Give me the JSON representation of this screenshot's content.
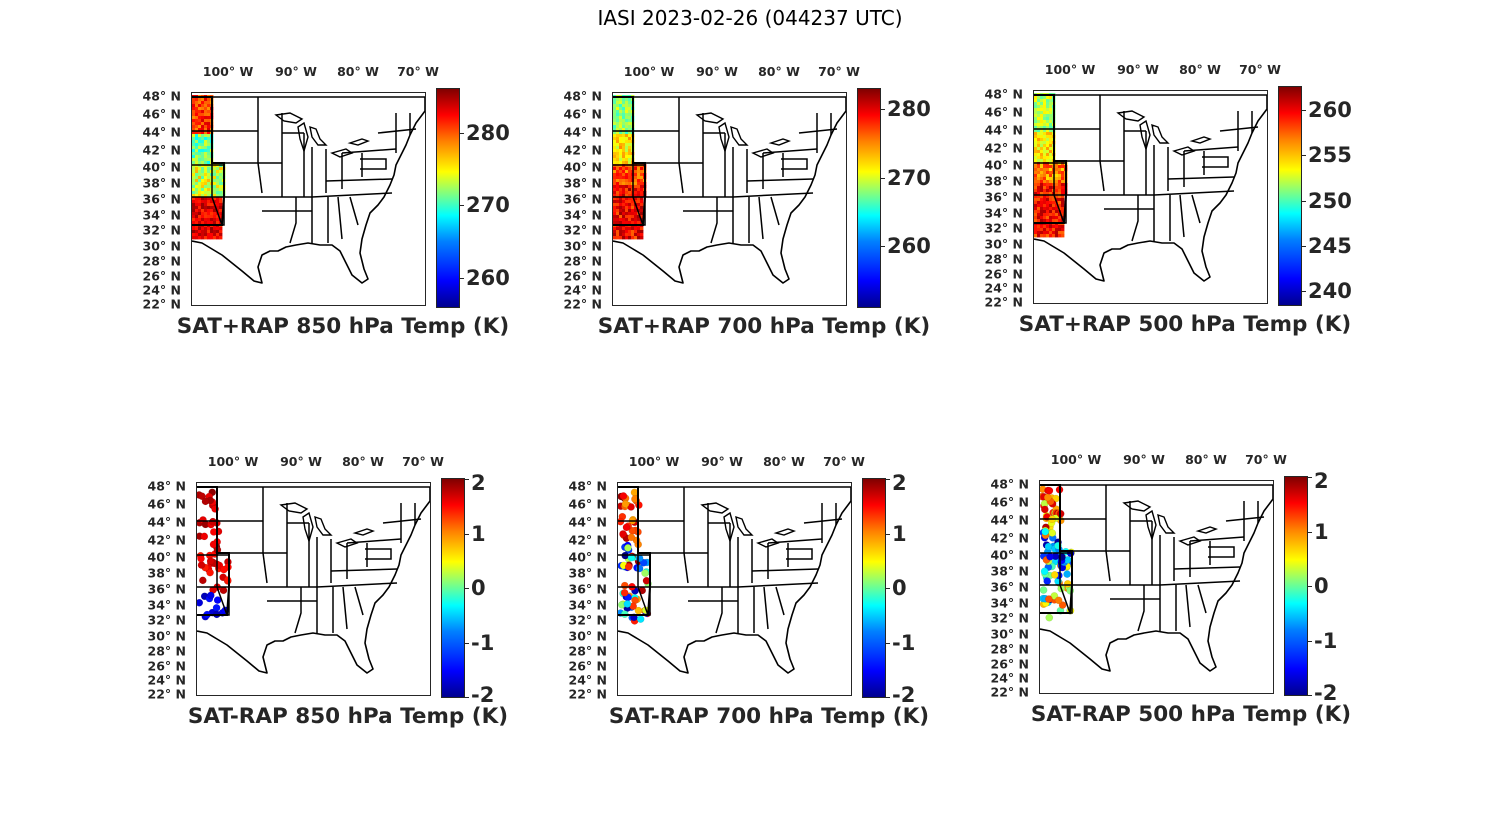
{
  "title": "IASI 2023-02-26 (044237 UTC)",
  "lon_labels": [
    "100° W",
    "90° W",
    "80° W",
    "70° W"
  ],
  "lat_labels": [
    "48° N",
    "46° N",
    "44° N",
    "42° N",
    "40° N",
    "38° N",
    "36° N",
    "34° N",
    "32° N",
    "30° N",
    "28° N",
    "26° N",
    "24° N",
    "22° N"
  ],
  "panels": [
    {
      "caption": "SAT+RAP 850 hPa Temp (K)",
      "kind": "abs",
      "colorbar": {
        "ticks": [
          "280",
          "270",
          "260"
        ],
        "values": [
          280,
          270,
          260
        ],
        "min": 256,
        "max": 286
      }
    },
    {
      "caption": "SAT+RAP 700 hPa Temp (K)",
      "kind": "abs",
      "colorbar": {
        "ticks": [
          "280",
          "270",
          "260"
        ],
        "values": [
          280,
          270,
          260
        ],
        "min": 251,
        "max": 283
      }
    },
    {
      "caption": "SAT+RAP 500 hPa Temp (K)",
      "kind": "abs",
      "colorbar": {
        "ticks": [
          "260",
          "255",
          "250",
          "245",
          "240"
        ],
        "values": [
          260,
          255,
          250,
          245,
          240
        ],
        "min": 238.5,
        "max": 262.5
      }
    },
    {
      "caption": "SAT-RAP 850 hPa Temp (K)",
      "kind": "diff",
      "colorbar": {
        "ticks": [
          "2",
          "1",
          "0",
          "-1",
          "-2"
        ],
        "values": [
          2,
          1,
          0,
          -1,
          -2
        ],
        "min": -2,
        "max": 2
      }
    },
    {
      "caption": "SAT-RAP 700 hPa Temp (K)",
      "kind": "diff",
      "colorbar": {
        "ticks": [
          "2",
          "1",
          "0",
          "-1",
          "-2"
        ],
        "values": [
          2,
          1,
          0,
          -1,
          -2
        ],
        "min": -2,
        "max": 2
      }
    },
    {
      "caption": "SAT-RAP 500 hPa Temp (K)",
      "kind": "diff",
      "colorbar": {
        "ticks": [
          "2",
          "1",
          "0",
          "-1",
          "-2"
        ],
        "values": [
          2,
          1,
          0,
          -1,
          -2
        ],
        "min": -2,
        "max": 2
      }
    }
  ],
  "colormap": "jet"
}
